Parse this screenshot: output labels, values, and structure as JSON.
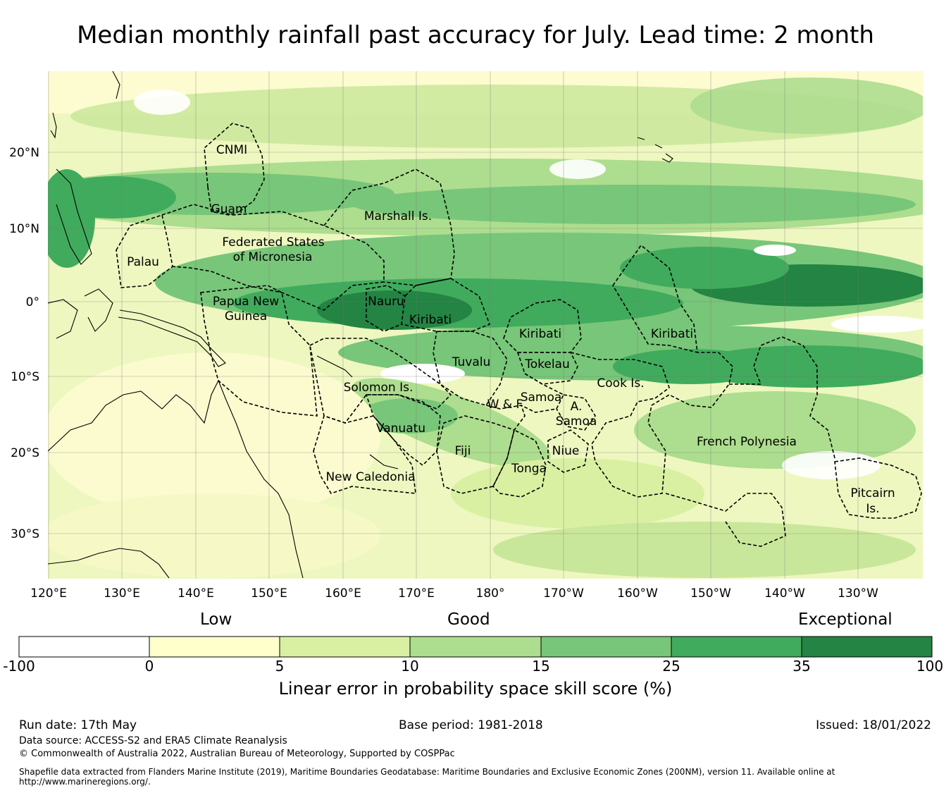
{
  "title": "Median monthly rainfall past accuracy for July. Lead time: 2 month",
  "map": {
    "lon_ticks": [
      "120°E",
      "130°E",
      "140°E",
      "150°E",
      "160°E",
      "170°E",
      "180°",
      "170°W",
      "160°W",
      "150°W",
      "140°W",
      "130°W"
    ],
    "lat_ticks": [
      "20°N",
      "10°N",
      "0°",
      "10°S",
      "20°S",
      "30°S"
    ],
    "regions": [
      {
        "name": "CNMI"
      },
      {
        "name": "Guam"
      },
      {
        "name": "Marshall Is."
      },
      {
        "name": "Federated States"
      },
      {
        "name": "of Micronesia"
      },
      {
        "name": "Palau"
      },
      {
        "name": "Papua New"
      },
      {
        "name": "Guinea"
      },
      {
        "name": "Nauru"
      },
      {
        "name": "Kiribati"
      },
      {
        "name": "Kiribati"
      },
      {
        "name": "Kiribati"
      },
      {
        "name": "Tuvalu"
      },
      {
        "name": "Tokelau"
      },
      {
        "name": "Solomon Is."
      },
      {
        "name": "Cook Is."
      },
      {
        "name": "Samoa"
      },
      {
        "name": "W & F"
      },
      {
        "name": "A."
      },
      {
        "name": "Samoa"
      },
      {
        "name": "Vanuatu"
      },
      {
        "name": "Fiji"
      },
      {
        "name": "Niue"
      },
      {
        "name": "Tonga"
      },
      {
        "name": "French Polynesia"
      },
      {
        "name": "New Caledonia"
      },
      {
        "name": "Pitcairn"
      },
      {
        "name": "Is."
      }
    ]
  },
  "colorbar": {
    "categories": [
      "Low",
      "Good",
      "Exceptional"
    ],
    "ticks": [
      "-100",
      "0",
      "5",
      "10",
      "15",
      "25",
      "35",
      "100"
    ],
    "colors": [
      "#ffffff",
      "#ffffcc",
      "#d9f0a3",
      "#addd8e",
      "#78c679",
      "#41ab5d",
      "#238443"
    ],
    "label": "Linear error in probability space skill score (%)"
  },
  "footer": {
    "run_date": "Run date: 17th May",
    "base_period": "Base period: 1981-2018",
    "issued": "Issued: 18/01/2022",
    "data_source": "Data source: ACCESS-S2 and ERA5 Climate Reanalysis",
    "copyright": "© Commonwealth of Australia 2022, Australian Bureau of Meteorology, Supported by COSPPac",
    "shapefile": "Shapefile data extracted from Flanders Marine Institute (2019), Maritime Boundaries Geodatabase: Maritime Boundaries and Exclusive Economic Zones (200NM), version 11. Available online at http://www.marineregions.org/."
  }
}
